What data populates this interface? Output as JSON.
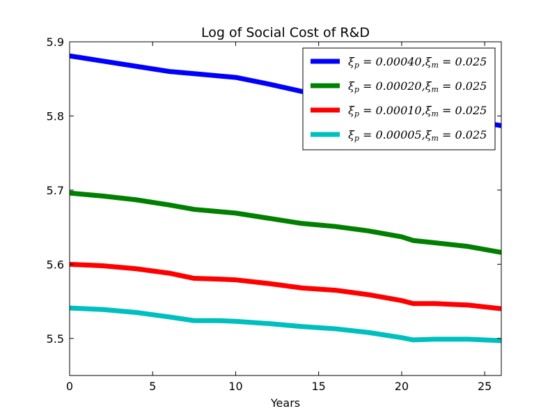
{
  "chart_data": {
    "type": "line",
    "title": "Log of Social Cost of R&D",
    "xlabel": "Years",
    "ylabel": "",
    "xlim": [
      0,
      26
    ],
    "ylim": [
      5.45,
      5.9
    ],
    "xticks": [
      0,
      5,
      10,
      15,
      20,
      25
    ],
    "yticks": [
      5.5,
      5.6,
      5.7,
      5.8,
      5.9
    ],
    "xtick_labels": [
      "0",
      "5",
      "10",
      "15",
      "20",
      "25"
    ],
    "ytick_labels": [
      "5.5",
      "5.6",
      "5.7",
      "5.8",
      "5.9"
    ],
    "grid": false,
    "legend_position": "top-right",
    "series": [
      {
        "name": "ξp = 0.00040, ξm = 0.025",
        "color": "#0000ff",
        "x": [
          0,
          2,
          4,
          6,
          7.5,
          9,
          10,
          12,
          14,
          16,
          18,
          20,
          21,
          22,
          24,
          26
        ],
        "y": [
          5.881,
          5.874,
          5.867,
          5.86,
          5.857,
          5.854,
          5.852,
          5.843,
          5.833,
          5.824,
          5.815,
          5.806,
          5.801,
          5.799,
          5.794,
          5.787
        ]
      },
      {
        "name": "ξp = 0.00020, ξm = 0.025",
        "color": "#008000",
        "x": [
          0,
          2,
          4,
          6,
          7.5,
          9,
          10,
          12,
          14,
          16,
          18,
          20,
          20.7,
          22,
          24,
          26
        ],
        "y": [
          5.696,
          5.692,
          5.687,
          5.68,
          5.674,
          5.671,
          5.669,
          5.662,
          5.655,
          5.651,
          5.645,
          5.637,
          5.632,
          5.629,
          5.624,
          5.616
        ]
      },
      {
        "name": "ξp = 0.00010, ξm = 0.025",
        "color": "#ff0000",
        "x": [
          0,
          2,
          4,
          6,
          7.5,
          9,
          10,
          12,
          14,
          16,
          18,
          20,
          20.7,
          22,
          24,
          26
        ],
        "y": [
          5.6,
          5.598,
          5.594,
          5.588,
          5.581,
          5.58,
          5.579,
          5.574,
          5.568,
          5.565,
          5.559,
          5.551,
          5.547,
          5.547,
          5.545,
          5.54
        ]
      },
      {
        "name": "ξp = 0.00005, ξm = 0.025",
        "color": "#00bfbf",
        "x": [
          0,
          2,
          4,
          6,
          7.5,
          9,
          10,
          12,
          14,
          16,
          18,
          20,
          20.7,
          22,
          24,
          26
        ],
        "y": [
          5.541,
          5.539,
          5.535,
          5.529,
          5.524,
          5.524,
          5.523,
          5.52,
          5.516,
          5.513,
          5.508,
          5.501,
          5.498,
          5.499,
          5.499,
          5.497
        ]
      }
    ],
    "legend": [
      {
        "prefix": "ξ",
        "sub_p": "p",
        "eq_p": " = 0.00040",
        "comma": ",",
        "prefix2": "ξ",
        "sub_m": "m",
        "eq_m": " = 0.025"
      },
      {
        "prefix": "ξ",
        "sub_p": "p",
        "eq_p": " = 0.00020",
        "comma": ",",
        "prefix2": "ξ",
        "sub_m": "m",
        "eq_m": " = 0.025"
      },
      {
        "prefix": "ξ",
        "sub_p": "p",
        "eq_p": " = 0.00010",
        "comma": ",",
        "prefix2": "ξ",
        "sub_m": "m",
        "eq_m": " = 0.025"
      },
      {
        "prefix": "ξ",
        "sub_p": "p",
        "eq_p": " = 0.00005",
        "comma": ",",
        "prefix2": "ξ",
        "sub_m": "m",
        "eq_m": " = 0.025"
      }
    ]
  }
}
